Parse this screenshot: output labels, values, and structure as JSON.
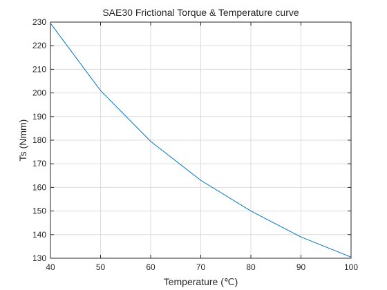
{
  "chart_data": {
    "type": "line",
    "title": "SAE30 Frictional Torque & Temperature curve",
    "xlabel": "Temperature (℃)",
    "ylabel": "Ts (Nmm)",
    "xlim": [
      40,
      100
    ],
    "ylim": [
      130,
      230
    ],
    "xticks": [
      40,
      50,
      60,
      70,
      80,
      90,
      100
    ],
    "yticks": [
      130,
      140,
      150,
      160,
      170,
      180,
      190,
      200,
      210,
      220,
      230
    ],
    "grid": true,
    "series": [
      {
        "x": [
          40,
          50,
          60,
          70,
          80,
          90,
          100
        ],
        "y": [
          229.5,
          201.0,
          179.5,
          163.0,
          150.0,
          139.0,
          130.5
        ],
        "color": "#0072BD"
      }
    ]
  }
}
